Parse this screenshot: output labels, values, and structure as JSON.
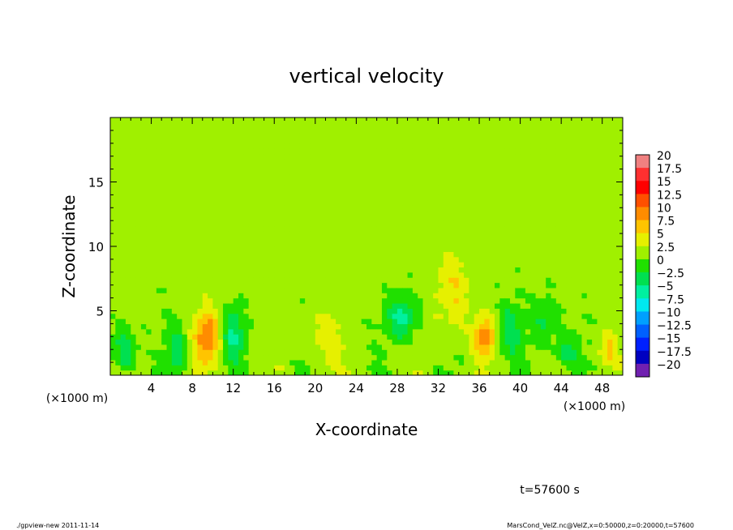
{
  "chart_data": {
    "type": "heatmap",
    "title": "vertical velocity",
    "xlabel": "X-coordinate",
    "ylabel": "Z-coordinate",
    "x_unit_label_left": "(×1000 m)",
    "x_unit_label_right": "(×1000 m)",
    "xlim": [
      0,
      50
    ],
    "ylim": [
      0,
      20
    ],
    "x_ticks": [
      4,
      8,
      12,
      16,
      20,
      24,
      28,
      32,
      36,
      40,
      44,
      48
    ],
    "x_tick_labels": [
      "4",
      "8",
      "12",
      "16",
      "20",
      "24",
      "28",
      "32",
      "36",
      "40",
      "44",
      "48"
    ],
    "y_ticks": [
      5,
      10,
      15
    ],
    "y_tick_labels": [
      "5",
      "10",
      "15"
    ],
    "field_description_features": [
      {
        "x": 9.5,
        "z": 3.0,
        "value": 9,
        "sx": 0.9,
        "sz": 1.4
      },
      {
        "x": 36.5,
        "z": 3.0,
        "value": 8,
        "sx": 0.7,
        "sz": 1.1
      },
      {
        "x": 12.0,
        "z": 3.2,
        "value": -6,
        "sx": 0.8,
        "sz": 1.4
      },
      {
        "x": 28.5,
        "z": 4.5,
        "value": -7,
        "sx": 1.0,
        "sz": 1.2
      },
      {
        "x": 1.5,
        "z": 2.0,
        "value": -6,
        "sx": 0.8,
        "sz": 1.2
      },
      {
        "x": 6.5,
        "z": 2.0,
        "value": -5,
        "sx": 0.7,
        "sz": 1.2
      },
      {
        "x": 39.0,
        "z": 3.5,
        "value": -5,
        "sx": 0.8,
        "sz": 1.5
      },
      {
        "x": 44.5,
        "z": 1.8,
        "value": -5,
        "sx": 0.9,
        "sz": 1.0
      },
      {
        "x": 48.5,
        "z": 2.0,
        "value": 5,
        "sx": 0.7,
        "sz": 1.0
      },
      {
        "x": 33.5,
        "z": 6.5,
        "value": 4,
        "sx": 1.2,
        "sz": 2.0
      },
      {
        "x": 21.0,
        "z": 3.0,
        "value": 3,
        "sx": 1.2,
        "sz": 1.5
      },
      {
        "x": 42.5,
        "z": 4.5,
        "value": -4,
        "sx": 0.9,
        "sz": 1.2
      }
    ],
    "colorbar": {
      "levels": [
        "20",
        "17.5",
        "15",
        "12.5",
        "10",
        "7.5",
        "5",
        "2.5",
        "0",
        "−2.5",
        "−5",
        "−7.5",
        "−10",
        "−12.5",
        "−15",
        "−17.5",
        "−20"
      ],
      "colors": [
        "#f08080",
        "#ff3030",
        "#ff0000",
        "#ff5000",
        "#ff8c00",
        "#ffc400",
        "#e6f000",
        "#a0f000",
        "#20e000",
        "#00e050",
        "#00f0a0",
        "#00e8f0",
        "#00a0ff",
        "#0060ff",
        "#0020ff",
        "#0000c0",
        "#7020b0"
      ]
    },
    "time_label": "t=57600 s",
    "footer_left": "./gpview-new  2011-11-14",
    "footer_right": "MarsCond_VelZ.nc@VelZ,x=0:50000,z=0:20000,t=57600"
  }
}
